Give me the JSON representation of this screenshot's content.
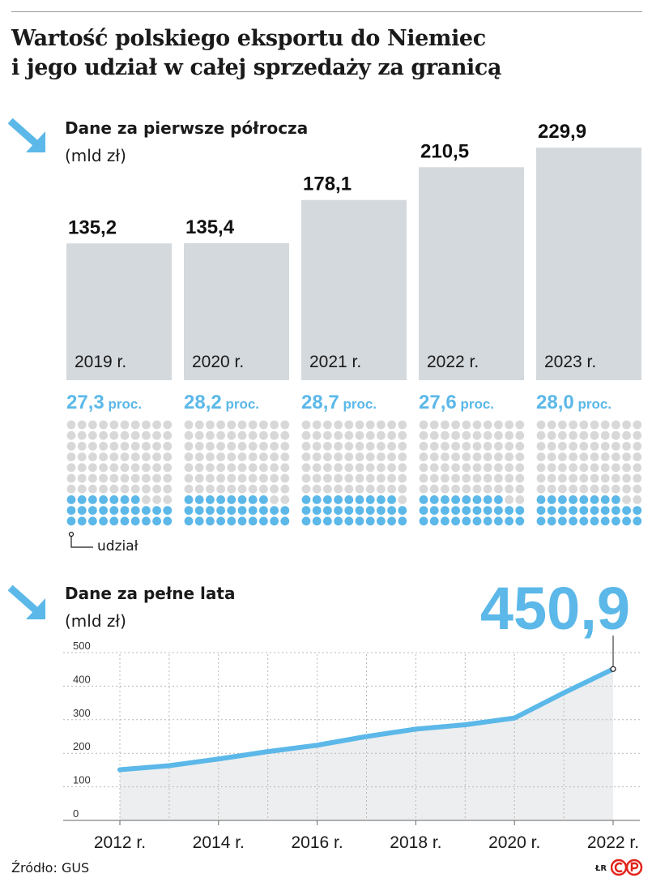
{
  "title_line1": "Wartość polskiego eksportu do Niemiec",
  "title_line2": "i jego udział w całej sprzedaży za granicą",
  "colors": {
    "bar": "#d4d9dd",
    "accent": "#5bb8e8",
    "dot_empty": "#d8d8d8",
    "area": "#eceef0",
    "grid": "#b8b8b8"
  },
  "icons": {
    "section_arrow": "arrow-down-right-icon",
    "logo": "cp-logo-icon"
  },
  "half_year": {
    "title": "Dane za pierwsze półrocza",
    "unit": "(mld zł)",
    "share_unit": "proc.",
    "share_label": "udział"
  },
  "full_year": {
    "title": "Dane za pełne lata",
    "unit": "(mld zł)",
    "highlight_value": "450,9"
  },
  "source": "Źródło: GUS",
  "credit": "ŁR",
  "chart_data": [
    {
      "type": "bar",
      "categories": [
        "2019 r.",
        "2020 r.",
        "2021 r.",
        "2022 r.",
        "2023 r."
      ],
      "values": [
        135.2,
        135.4,
        178.1,
        210.5,
        229.9
      ],
      "value_labels": [
        "135,2",
        "135,4",
        "178,1",
        "210,5",
        "229,9"
      ],
      "title": "Dane za pierwsze półrocza",
      "ylabel": "(mld zł)"
    },
    {
      "type": "waffle",
      "categories": [
        "2019 r.",
        "2020 r.",
        "2021 r.",
        "2022 r.",
        "2023 r."
      ],
      "values": [
        27.3,
        28.2,
        28.7,
        27.6,
        28.0
      ],
      "value_labels": [
        "27,3",
        "28,2",
        "28,7",
        "27,6",
        "28,0"
      ],
      "unit": "proc.",
      "legend": "udział",
      "dots_per_panel": 100
    },
    {
      "type": "area",
      "title": "Dane za pełne lata",
      "ylabel": "(mld zł)",
      "x": [
        2012,
        2013,
        2014,
        2015,
        2016,
        2017,
        2018,
        2019,
        2020,
        2021,
        2022
      ],
      "values": [
        151,
        163,
        183,
        205,
        224,
        250,
        272,
        285,
        305,
        380,
        450.9
      ],
      "x_ticks": [
        "2012 r.",
        "2014 r.",
        "2016 r.",
        "2018 r.",
        "2020 r.",
        "2022 r."
      ],
      "x_tick_values": [
        2012,
        2014,
        2016,
        2018,
        2020,
        2022
      ],
      "y_ticks": [
        0,
        100,
        200,
        300,
        400,
        500
      ],
      "ylim": [
        0,
        500
      ],
      "xlim": [
        2012,
        2022
      ],
      "annotation": "450,9",
      "grid": true
    }
  ]
}
